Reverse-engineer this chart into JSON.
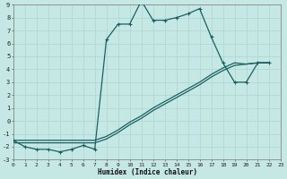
{
  "xlabel": "Humidex (Indice chaleur)",
  "bg_color": "#c5e8e5",
  "grid_color": "#afd8d4",
  "line_color": "#1a6060",
  "xlim": [
    0,
    23
  ],
  "ylim": [
    -3,
    9
  ],
  "xticks": [
    0,
    1,
    2,
    3,
    4,
    5,
    6,
    7,
    8,
    9,
    10,
    11,
    12,
    13,
    14,
    15,
    16,
    17,
    18,
    19,
    20,
    21,
    22,
    23
  ],
  "yticks": [
    -3,
    -2,
    -1,
    0,
    1,
    2,
    3,
    4,
    5,
    6,
    7,
    8,
    9
  ],
  "curve_x": [
    0,
    1,
    2,
    3,
    4,
    5,
    6,
    7,
    8,
    9,
    10,
    11,
    12,
    13,
    14,
    15,
    16,
    17,
    18,
    19,
    20,
    21,
    22
  ],
  "curve_y": [
    -1.5,
    -2.0,
    -2.2,
    -2.2,
    -2.4,
    -2.2,
    -1.9,
    -2.2,
    6.3,
    7.5,
    7.5,
    9.3,
    7.8,
    7.8,
    8.0,
    8.3,
    8.7,
    6.5,
    4.5,
    3.0,
    3.0,
    4.5,
    4.5
  ],
  "diag1_x": [
    0,
    7,
    8,
    9,
    10,
    11,
    12,
    13,
    14,
    15,
    16,
    17,
    18,
    19,
    20,
    21,
    22
  ],
  "diag1_y": [
    -1.5,
    -1.5,
    -1.2,
    -0.7,
    -0.1,
    0.4,
    1.0,
    1.5,
    2.0,
    2.5,
    3.0,
    3.6,
    4.1,
    4.5,
    4.4,
    4.5,
    4.5
  ],
  "diag2_x": [
    0,
    7,
    8,
    9,
    10,
    11,
    12,
    13,
    14,
    15,
    16,
    17,
    18,
    19,
    20,
    21,
    22
  ],
  "diag2_y": [
    -1.7,
    -1.7,
    -1.4,
    -0.9,
    -0.3,
    0.2,
    0.8,
    1.3,
    1.8,
    2.3,
    2.8,
    3.4,
    3.9,
    4.3,
    4.4,
    4.5,
    4.5
  ]
}
